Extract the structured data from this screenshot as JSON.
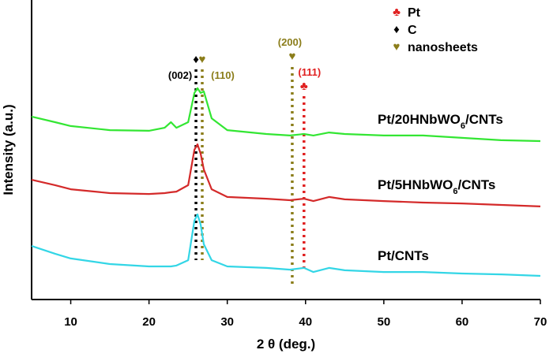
{
  "chart_data": {
    "type": "line",
    "x_label": "2 θ (deg.)",
    "y_label": "Intensity (a.u.)",
    "xlim": [
      5,
      70
    ],
    "xticks": [
      10,
      20,
      30,
      40,
      50,
      60,
      70
    ],
    "ylim": [
      0,
      100
    ],
    "x": [
      5,
      8,
      10,
      15,
      20,
      22,
      22.8,
      23.5,
      25,
      25.8,
      26.2,
      26.6,
      27,
      28,
      30,
      35,
      38,
      39.8,
      41,
      43,
      45,
      50,
      55,
      60,
      65,
      70
    ],
    "series": [
      {
        "label": [
          "Pt/20HNbWO",
          "6",
          "/CNTs"
        ],
        "color": "#33e633",
        "values": [
          61.9,
          60,
          58.7,
          57.3,
          57.1,
          58.1,
          60,
          58.1,
          60,
          69.9,
          71.5,
          69.9,
          70.4,
          61.3,
          57.3,
          56,
          55.5,
          56,
          55.5,
          56.5,
          56,
          55.5,
          55.5,
          54.7,
          53.9,
          53.6
        ]
      },
      {
        "label": [
          "Pt/5HNbWO",
          "6",
          "/CNTs"
        ],
        "color": "#d42a2a",
        "values": [
          40.5,
          38.7,
          37.3,
          36,
          35.7,
          36,
          36.3,
          36.5,
          38.7,
          50.7,
          52.5,
          49.3,
          44,
          37.3,
          34.7,
          34.1,
          33.6,
          34.1,
          33.3,
          34.7,
          33.9,
          33.3,
          32.8,
          32.5,
          32,
          31.5
        ]
      },
      {
        "label": [
          "Pt/CNTs"
        ],
        "color": "#33d6e6",
        "values": [
          18.1,
          15.5,
          13.9,
          12,
          11.2,
          11.2,
          11.2,
          11.5,
          13.3,
          26.7,
          28.8,
          25.3,
          18.7,
          13.3,
          11.2,
          10.7,
          10.1,
          10.7,
          9.3,
          10.7,
          9.9,
          9.3,
          9.3,
          8.8,
          8.5,
          8
        ]
      }
    ],
    "references": [
      {
        "x": 26,
        "color": "#000000",
        "marker": "♦",
        "label": "(002)"
      },
      {
        "x": 26.8,
        "color": "#8b7d1a",
        "marker": "♥",
        "label": "(110)"
      },
      {
        "x": 38.3,
        "color": "#8b7d1a",
        "marker": "♥",
        "label": "(200)"
      },
      {
        "x": 39.8,
        "color": "#e02020",
        "marker": "♣",
        "label": "(111)"
      }
    ],
    "legend": [
      {
        "symbol": "♣",
        "name": "Pt",
        "color": "#e02020"
      },
      {
        "symbol": "♦",
        "name": "C",
        "color": "#000000"
      },
      {
        "symbol": "♥",
        "name": "nanosheets",
        "color": "#8b7d1a"
      }
    ]
  }
}
